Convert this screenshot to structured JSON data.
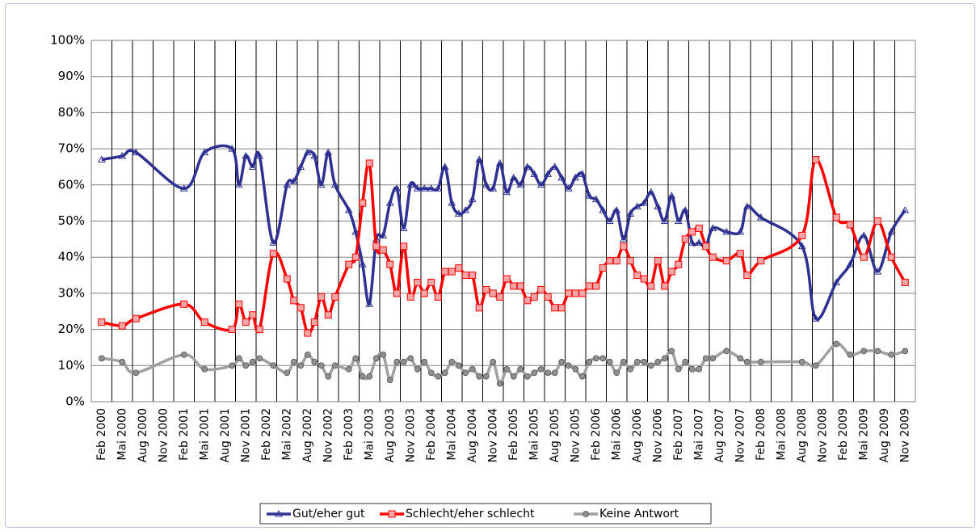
{
  "chart_data": {
    "type": "line",
    "x": [
      "2000-02",
      "2000-05",
      "2000-07",
      "2001-02",
      "2001-05",
      "2001-09",
      "2001-10",
      "2001-11",
      "2001-12",
      "2002-01",
      "2002-03",
      "2002-05",
      "2002-06",
      "2002-07",
      "2002-08",
      "2002-09",
      "2002-10",
      "2002-11",
      "2002-12",
      "2003-02",
      "2003-03",
      "2003-04",
      "2003-05",
      "2003-06",
      "2003-07",
      "2003-08",
      "2003-09",
      "2003-10",
      "2003-11",
      "2003-12",
      "2004-01",
      "2004-02",
      "2004-03",
      "2004-04",
      "2004-05",
      "2004-06",
      "2004-07",
      "2004-08",
      "2004-09",
      "2004-10",
      "2004-11",
      "2004-12",
      "2005-01",
      "2005-02",
      "2005-03",
      "2005-04",
      "2005-05",
      "2005-06",
      "2005-07",
      "2005-08",
      "2005-09",
      "2005-10",
      "2005-11",
      "2005-12",
      "2006-01",
      "2006-02",
      "2006-03",
      "2006-04",
      "2006-05",
      "2006-06",
      "2006-07",
      "2006-08",
      "2006-09",
      "2006-10",
      "2006-11",
      "2006-12",
      "2007-01",
      "2007-02",
      "2007-03",
      "2007-04",
      "2007-05",
      "2007-06",
      "2007-07",
      "2007-09",
      "2007-11",
      "2007-12",
      "2008-02",
      "2008-08",
      "2008-10",
      "2009-01",
      "2009-03",
      "2009-05",
      "2009-07",
      "2009-09",
      "2009-11"
    ],
    "series": [
      {
        "name": "Gut/eher gut",
        "color": "#2e3192",
        "marker": "triangle",
        "values": [
          67,
          68,
          69,
          59,
          69,
          70,
          60,
          68,
          65,
          68,
          44,
          60,
          61,
          65,
          69,
          68,
          60,
          69,
          60,
          53,
          47,
          38,
          27,
          45,
          46,
          55,
          59,
          48,
          60,
          59,
          59,
          59,
          59,
          65,
          55,
          52,
          53,
          56,
          67,
          60,
          59,
          66,
          58,
          62,
          60,
          65,
          63,
          60,
          63,
          65,
          62,
          59,
          62,
          63,
          57,
          56,
          53,
          50,
          53,
          45,
          52,
          54,
          55,
          58,
          54,
          50,
          57,
          50,
          53,
          44,
          44,
          43,
          48,
          47,
          47,
          54,
          51,
          43,
          23,
          33,
          38,
          46,
          36,
          47,
          53
        ]
      },
      {
        "name": "Schlecht/eher schlecht",
        "color": "#ff0000",
        "marker": "square",
        "values": [
          22,
          21,
          23,
          27,
          22,
          20,
          27,
          22,
          24,
          20,
          41,
          34,
          28,
          26,
          19,
          22,
          29,
          24,
          29,
          38,
          40,
          55,
          66,
          43,
          42,
          38,
          30,
          43,
          29,
          33,
          30,
          33,
          29,
          36,
          36,
          37,
          35,
          35,
          26,
          31,
          30,
          29,
          34,
          32,
          32,
          28,
          29,
          31,
          29,
          26,
          26,
          30,
          30,
          30,
          32,
          32,
          37,
          39,
          39,
          43,
          39,
          35,
          34,
          32,
          39,
          32,
          36,
          38,
          45,
          47,
          48,
          43,
          40,
          39,
          41,
          35,
          39,
          46,
          67,
          51,
          49,
          40,
          50,
          40,
          33
        ]
      },
      {
        "name": "Keine Antwort",
        "color": "#a0a0a0",
        "marker": "circle",
        "values": [
          12,
          11,
          8,
          13,
          9,
          10,
          12,
          10,
          11,
          12,
          10,
          8,
          11,
          10,
          13,
          11,
          10,
          7,
          10,
          9,
          12,
          7,
          7,
          12,
          13,
          6,
          11,
          11,
          12,
          9,
          11,
          8,
          7,
          8,
          11,
          10,
          8,
          9,
          7,
          7,
          11,
          5,
          9,
          7,
          9,
          7,
          8,
          9,
          8,
          8,
          11,
          10,
          9,
          7,
          11,
          12,
          12,
          11,
          8,
          11,
          9,
          11,
          11,
          10,
          11,
          12,
          14,
          9,
          11,
          9,
          9,
          12,
          12,
          14,
          12,
          11,
          11,
          11,
          10,
          16,
          13,
          14,
          14,
          13,
          14
        ]
      }
    ],
    "xlim": [
      "2000-01",
      "2009-12"
    ],
    "xticks": [
      {
        "value": "2000-02",
        "label": "Feb 2000"
      },
      {
        "value": "2000-05",
        "label": "Mai 2000"
      },
      {
        "value": "2000-08",
        "label": "Aug 2000"
      },
      {
        "value": "2000-11",
        "label": "Nov 2000"
      },
      {
        "value": "2001-02",
        "label": "Feb 2001"
      },
      {
        "value": "2001-05",
        "label": "Mai 2001"
      },
      {
        "value": "2001-08",
        "label": "Aug 2001"
      },
      {
        "value": "2001-11",
        "label": "Nov 2001"
      },
      {
        "value": "2002-02",
        "label": "Feb 2002"
      },
      {
        "value": "2002-05",
        "label": "Mai 2002"
      },
      {
        "value": "2002-08",
        "label": "Aug 2002"
      },
      {
        "value": "2002-11",
        "label": "Nov 2002"
      },
      {
        "value": "2003-02",
        "label": "Feb 2003"
      },
      {
        "value": "2003-05",
        "label": "Mai 2003"
      },
      {
        "value": "2003-08",
        "label": "Aug 2003"
      },
      {
        "value": "2003-11",
        "label": "Nov 2003"
      },
      {
        "value": "2004-02",
        "label": "Feb 2004"
      },
      {
        "value": "2004-05",
        "label": "Mai 2004"
      },
      {
        "value": "2004-08",
        "label": "Aug 2004"
      },
      {
        "value": "2004-11",
        "label": "Nov 2004"
      },
      {
        "value": "2005-02",
        "label": "Feb 2005"
      },
      {
        "value": "2005-05",
        "label": "Mai 2005"
      },
      {
        "value": "2005-08",
        "label": "Aug 2005"
      },
      {
        "value": "2005-11",
        "label": "Nov 2005"
      },
      {
        "value": "2006-02",
        "label": "Feb 2006"
      },
      {
        "value": "2006-05",
        "label": "Mai 2006"
      },
      {
        "value": "2006-08",
        "label": "Aug 2006"
      },
      {
        "value": "2006-11",
        "label": "Nov 2006"
      },
      {
        "value": "2007-02",
        "label": "Feb 2007"
      },
      {
        "value": "2007-05",
        "label": "Mai 2007"
      },
      {
        "value": "2007-08",
        "label": "Aug 2007"
      },
      {
        "value": "2007-11",
        "label": "Nov 2007"
      },
      {
        "value": "2008-02",
        "label": "Feb 2008"
      },
      {
        "value": "2008-05",
        "label": "Mai 2008"
      },
      {
        "value": "2008-08",
        "label": "Aug 2008"
      },
      {
        "value": "2008-11",
        "label": "Nov 2008"
      },
      {
        "value": "2009-02",
        "label": "Feb 2009"
      },
      {
        "value": "2009-05",
        "label": "Mai 2009"
      },
      {
        "value": "2009-08",
        "label": "Aug 2009"
      },
      {
        "value": "2009-11",
        "label": "Nov 2009"
      }
    ],
    "ylim": [
      0,
      100
    ],
    "yticks": [
      {
        "value": 0,
        "label": "0%"
      },
      {
        "value": 10,
        "label": "10%"
      },
      {
        "value": 20,
        "label": "20%"
      },
      {
        "value": 30,
        "label": "30%"
      },
      {
        "value": 40,
        "label": "40%"
      },
      {
        "value": 50,
        "label": "50%"
      },
      {
        "value": 60,
        "label": "60%"
      },
      {
        "value": 70,
        "label": "70%"
      },
      {
        "value": 80,
        "label": "80%"
      },
      {
        "value": 90,
        "label": "90%"
      },
      {
        "value": 100,
        "label": "100%"
      }
    ],
    "grid": true,
    "legend": "bottom"
  }
}
